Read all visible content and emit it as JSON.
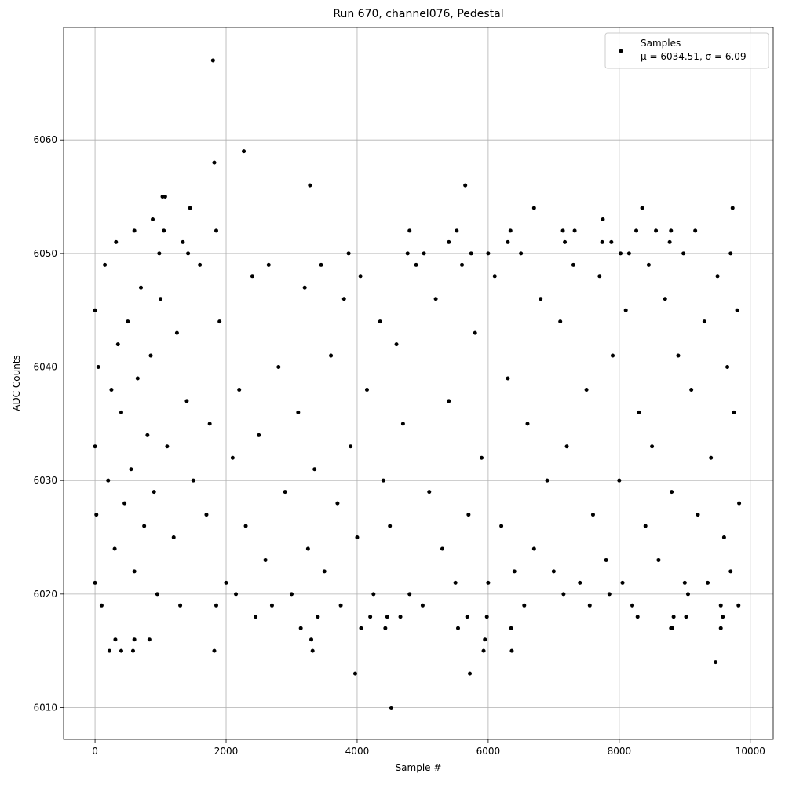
{
  "chart_data": {
    "type": "scatter",
    "title": "Run 670, channel076, Pedestal",
    "xlabel": "Sample #",
    "ylabel": "ADC Counts",
    "xlim": [
      -480,
      10350
    ],
    "ylim": [
      6007.2,
      6069.9
    ],
    "xticks": [
      0,
      2000,
      4000,
      6000,
      8000,
      10000
    ],
    "yticks": [
      6010,
      6020,
      6030,
      6040,
      6050,
      6060
    ],
    "grid": true,
    "legend": "upper right",
    "series": [
      {
        "name": "Samples",
        "legend_text": "μ = 6034.51, σ = 6.09",
        "color": "#000000",
        "x": [
          0,
          0,
          20,
          50,
          100,
          150,
          200,
          250,
          300,
          350,
          400,
          450,
          500,
          550,
          600,
          650,
          700,
          750,
          800,
          850,
          900,
          950,
          1000,
          1100,
          1200,
          1250,
          1300,
          1400,
          1500,
          1600,
          1700,
          1750,
          1850,
          1900,
          2000,
          2100,
          2150,
          2200,
          2300,
          2400,
          2450,
          2500,
          2600,
          2650,
          2700,
          2800,
          2900,
          3000,
          3100,
          3200,
          3250,
          3350,
          3450,
          3500,
          3600,
          3700,
          3750,
          3800,
          3900,
          4000,
          4050,
          4150,
          4250,
          4350,
          4400,
          4500,
          4600,
          4700,
          4800,
          4900,
          5000,
          5100,
          5200,
          5300,
          5400,
          5500,
          5600,
          5700,
          5800,
          5900,
          6000,
          6100,
          6200,
          6300,
          6400,
          6500,
          6550,
          6600,
          6700,
          6800,
          6900,
          7000,
          7100,
          7150,
          7200,
          7300,
          7400,
          7500,
          7550,
          7600,
          7700,
          7800,
          7850,
          7900,
          8000,
          8050,
          8100,
          8200,
          8300,
          8400,
          8450,
          8500,
          8600,
          8700,
          8800,
          8900,
          9000,
          9050,
          9100,
          9200,
          9300,
          9350,
          9400,
          9500,
          9550,
          9600,
          9650,
          9700,
          9750,
          9800,
          9820,
          9830,
          1800,
          1820,
          2270,
          3280,
          5650,
          4520,
          3970,
          5720,
          9470,
          1820,
          220,
          400,
          580,
          6360,
          8350,
          9730,
          6700,
          1450,
          1030,
          1070,
          880,
          7750,
          0,
          310,
          600,
          830,
          3300,
          3320,
          5950,
          5930,
          4060,
          4430,
          5540,
          6350,
          8790,
          8810,
          9550,
          3140,
          3400,
          4200,
          4460,
          4660,
          5680,
          5980,
          8280,
          9580,
          8830,
          9020,
          600,
          1050,
          1850,
          4800,
          5520,
          6340,
          7140,
          7320,
          8260,
          8560,
          8790,
          9160,
          320,
          1340,
          5400,
          6300,
          7170,
          7740,
          7880,
          8770,
          3870,
          5020,
          4770,
          1420,
          980,
          5740,
          6000,
          8020,
          8150,
          8980,
          9700
        ],
        "values": [
          6045,
          6033,
          6027,
          6040,
          6019,
          6049,
          6030,
          6038,
          6024,
          6042,
          6036,
          6028,
          6044,
          6031,
          6022,
          6039,
          6047,
          6026,
          6034,
          6041,
          6029,
          6020,
          6046,
          6033,
          6025,
          6043,
          6019,
          6037,
          6030,
          6049,
          6027,
          6035,
          6019,
          6044,
          6021,
          6032,
          6020,
          6038,
          6026,
          6048,
          6018,
          6034,
          6023,
          6049,
          6019,
          6040,
          6029,
          6020,
          6036,
          6047,
          6024,
          6031,
          6049,
          6022,
          6041,
          6028,
          6019,
          6046,
          6033,
          6025,
          6048,
          6038,
          6020,
          6044,
          6030,
          6026,
          6042,
          6035,
          6020,
          6049,
          6019,
          6029,
          6046,
          6024,
          6037,
          6021,
          6049,
          6027,
          6043,
          6032,
          6021,
          6048,
          6026,
          6039,
          6022,
          6050,
          6019,
          6035,
          6024,
          6046,
          6030,
          6022,
          6044,
          6020,
          6033,
          6049,
          6021,
          6038,
          6019,
          6027,
          6048,
          6023,
          6020,
          6041,
          6030,
          6021,
          6045,
          6019,
          6036,
          6026,
          6049,
          6033,
          6023,
          6046,
          6029,
          6041,
          6021,
          6020,
          6038,
          6027,
          6044,
          6021,
          6032,
          6048,
          6019,
          6025,
          6040,
          6022,
          6036,
          6045,
          6019,
          6028,
          6067,
          6058,
          6059,
          6056,
          6056,
          6010,
          6013,
          6013,
          6014,
          6015,
          6015,
          6015,
          6015,
          6015,
          6054,
          6054,
          6054,
          6054,
          6055,
          6055,
          6053,
          6053,
          6021,
          6016,
          6016,
          6016,
          6016,
          6015,
          6016,
          6015,
          6017,
          6017,
          6017,
          6017,
          6017,
          6017,
          6017,
          6017,
          6018,
          6018,
          6018,
          6018,
          6018,
          6018,
          6018,
          6018,
          6018,
          6018,
          6052,
          6052,
          6052,
          6052,
          6052,
          6052,
          6052,
          6052,
          6052,
          6052,
          6052,
          6052,
          6051,
          6051,
          6051,
          6051,
          6051,
          6051,
          6051,
          6051,
          6050,
          6050,
          6050,
          6050,
          6050,
          6050,
          6050,
          6050,
          6050,
          6050,
          6050
        ]
      }
    ]
  }
}
